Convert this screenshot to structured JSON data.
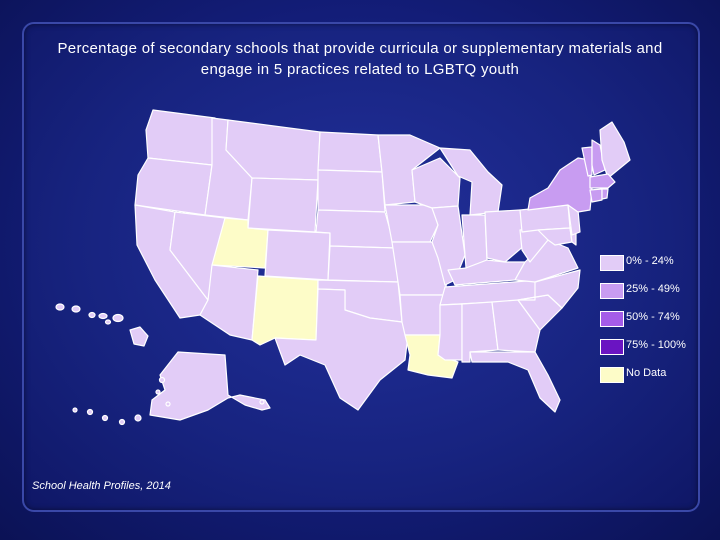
{
  "title": "Percentage of secondary schools that provide curricula or supplementary materials and engage in 5 practices related to LGBTQ youth",
  "source": "School Health Profiles, 2014",
  "legend": [
    {
      "label": "0% - 24%",
      "color": "#e2ccf7"
    },
    {
      "label": "25% - 49%",
      "color": "#c89cf1"
    },
    {
      "label": "50% - 74%",
      "color": "#a45ce8"
    },
    {
      "label": "75% - 100%",
      "color": "#6a14c2"
    },
    {
      "label": "No Data",
      "color": "#fdfcc8"
    }
  ],
  "map_data": {
    "no_data_states": [
      "Utah",
      "New Mexico",
      "Louisiana"
    ],
    "category_25_49_states": [
      "New York",
      "Vermont",
      "New Hampshire",
      "Massachusetts",
      "Rhode Island",
      "Connecticut"
    ],
    "default_category": "0% - 24%"
  }
}
